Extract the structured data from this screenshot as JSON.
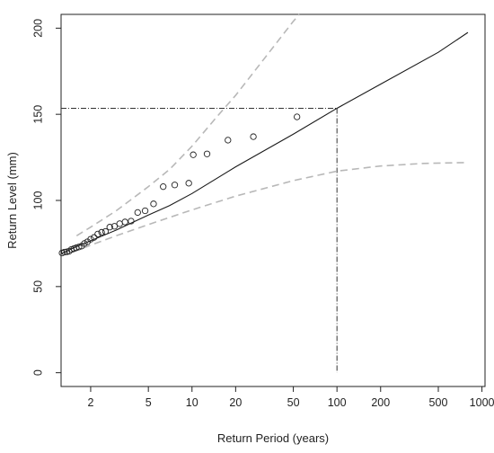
{
  "chart_data": {
    "type": "scatter",
    "xlabel": "Return Period (years)",
    "ylabel": "Return Level (mm)",
    "x_scale": "log",
    "xlim": [
      1.25,
      1050
    ],
    "ylim": [
      -8,
      208
    ],
    "x_ticks": [
      {
        "value": 2,
        "label": "2"
      },
      {
        "value": 5,
        "label": "5"
      },
      {
        "value": 10,
        "label": "10"
      },
      {
        "value": 20,
        "label": "20"
      },
      {
        "value": 50,
        "label": "50"
      },
      {
        "value": 100,
        "label": "100"
      },
      {
        "value": 200,
        "label": "200"
      },
      {
        "value": 500,
        "label": "500"
      },
      {
        "value": 1000,
        "label": "1000"
      }
    ],
    "y_ticks": [
      {
        "value": 0,
        "label": "0"
      },
      {
        "value": 50,
        "label": "50"
      },
      {
        "value": 100,
        "label": "100"
      },
      {
        "value": 150,
        "label": "150"
      },
      {
        "value": 200,
        "label": "200"
      }
    ],
    "grid": false,
    "legend": "none",
    "colors": {
      "fit_line": "#1a1a1a",
      "confidence_band": "#b8b8b8",
      "points": "#222222",
      "reference_lines": "#333333"
    },
    "series": [
      {
        "role": "observed",
        "marker": "open-circle",
        "points": [
          [
            1.27,
            69.5
          ],
          [
            1.32,
            70.0
          ],
          [
            1.37,
            70.2
          ],
          [
            1.42,
            70.5
          ],
          [
            1.47,
            71.5
          ],
          [
            1.53,
            72.0
          ],
          [
            1.59,
            72.5
          ],
          [
            1.66,
            73.0
          ],
          [
            1.73,
            73.5
          ],
          [
            1.81,
            75.0
          ],
          [
            1.9,
            76.0
          ],
          [
            2.0,
            77.5
          ],
          [
            2.11,
            78.5
          ],
          [
            2.24,
            80.5
          ],
          [
            2.38,
            81.5
          ],
          [
            2.53,
            82.0
          ],
          [
            2.71,
            84.5
          ],
          [
            2.92,
            85.0
          ],
          [
            3.17,
            86.5
          ],
          [
            3.45,
            87.5
          ],
          [
            3.8,
            88.0
          ],
          [
            4.22,
            93.0
          ],
          [
            4.75,
            94.0
          ],
          [
            5.43,
            98.0
          ],
          [
            6.33,
            108.0
          ],
          [
            7.6,
            109.0
          ],
          [
            9.5,
            110.0
          ],
          [
            10.2,
            126.5
          ],
          [
            12.7,
            127.0
          ],
          [
            17.7,
            135.0
          ],
          [
            26.5,
            137.0
          ],
          [
            53.0,
            148.5
          ]
        ]
      },
      {
        "role": "fit",
        "style": "solid",
        "points": [
          [
            1.25,
            69.0
          ],
          [
            1.5,
            72.2
          ],
          [
            2,
            76.6
          ],
          [
            3,
            82.8
          ],
          [
            5,
            91.5
          ],
          [
            7,
            97.0
          ],
          [
            10,
            104.0
          ],
          [
            20,
            119.5
          ],
          [
            50,
            138.5
          ],
          [
            100,
            153.5
          ],
          [
            200,
            167.5
          ],
          [
            500,
            186.0
          ],
          [
            800,
            197.5
          ]
        ]
      },
      {
        "role": "upper_confidence",
        "style": "dashed",
        "points": [
          [
            1.6,
            79.5
          ],
          [
            2,
            84.5
          ],
          [
            3,
            94.0
          ],
          [
            5,
            108.0
          ],
          [
            7,
            118.0
          ],
          [
            10,
            131.5
          ],
          [
            15,
            149.0
          ],
          [
            20,
            161.0
          ],
          [
            30,
            180.0
          ],
          [
            40,
            193.5
          ],
          [
            50,
            204.0
          ],
          [
            55,
            208.0
          ]
        ]
      },
      {
        "role": "lower_confidence",
        "style": "dashed",
        "points": [
          [
            1.5,
            70.0
          ],
          [
            2,
            74.0
          ],
          [
            3,
            79.5
          ],
          [
            5,
            86.0
          ],
          [
            10,
            94.5
          ],
          [
            20,
            102.5
          ],
          [
            50,
            111.5
          ],
          [
            100,
            117.0
          ],
          [
            200,
            120.0
          ],
          [
            400,
            121.5
          ],
          [
            800,
            122.0
          ]
        ]
      }
    ],
    "reference": {
      "return_period": 100,
      "return_level": 153.5,
      "style": "dot-dash"
    }
  }
}
